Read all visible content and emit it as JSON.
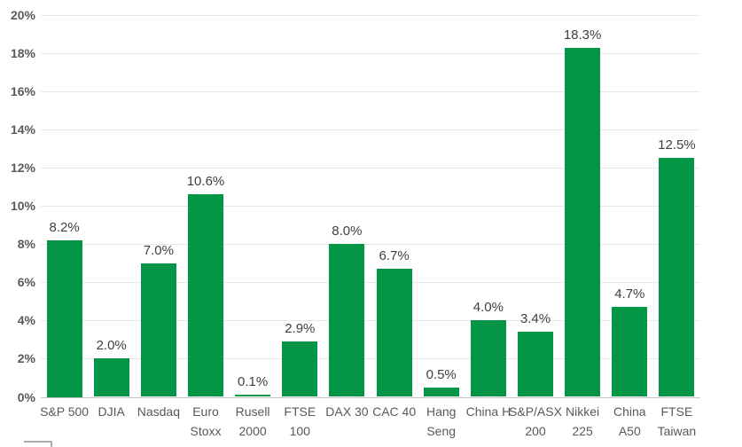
{
  "chart_data": {
    "type": "bar",
    "title": "",
    "categories": [
      "S&P 500",
      "DJIA",
      "Nasdaq",
      "Euro Stoxx",
      "Rusell 2000",
      "FTSE 100",
      "DAX 30",
      "CAC 40",
      "Hang Seng",
      "China H",
      "S&P/ASX 200",
      "Nikkei 225",
      "China A50",
      "FTSE Taiwan"
    ],
    "tick_labels": [
      "S&P 500",
      "DJIA",
      "Nasdaq",
      "Euro\nStoxx",
      "Rusell\n2000",
      "FTSE\n100",
      "DAX 30",
      "CAC 40",
      "Hang\nSeng",
      "China H",
      "S&P/ASX\n200",
      "Nikkei\n225",
      "China\nA50",
      "FTSE\nTaiwan"
    ],
    "values": [
      8.2,
      2.0,
      7.0,
      10.6,
      0.1,
      2.9,
      8.0,
      6.7,
      0.5,
      4.0,
      3.4,
      18.3,
      4.7,
      12.5
    ],
    "value_labels": [
      "8.2%",
      "2.0%",
      "7.0%",
      "10.6%",
      "0.1%",
      "2.9%",
      "8.0%",
      "6.7%",
      "0.5%",
      "4.0%",
      "3.4%",
      "18.3%",
      "4.7%",
      "12.5%"
    ],
    "xlabel": "",
    "ylabel": "",
    "ylim": [
      0,
      20
    ],
    "y_tick_step": 2,
    "y_ticks": [
      "0%",
      "2%",
      "4%",
      "6%",
      "8%",
      "10%",
      "12%",
      "14%",
      "16%",
      "18%",
      "20%"
    ],
    "grid": true,
    "legend": "none",
    "colors": {
      "bar": "#049647",
      "axis_text": "#595959",
      "data_label": "#404040",
      "gridline": "#e8e8e8",
      "axis_line": "#c6c6c6"
    }
  }
}
